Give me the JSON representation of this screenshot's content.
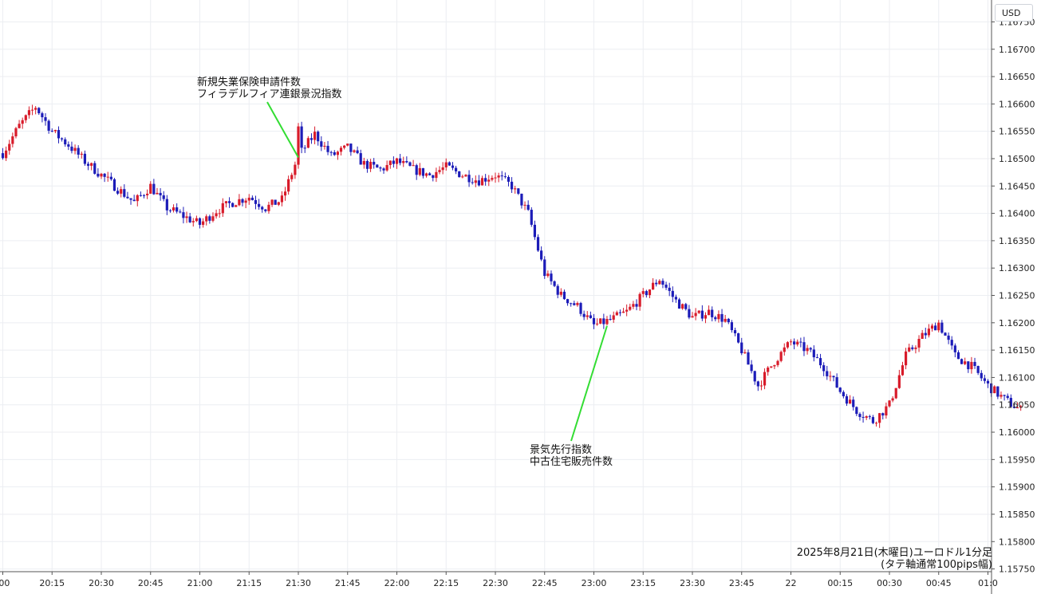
{
  "chart_data": {
    "type": "candlestick",
    "currency": "USD",
    "ylim": [
      1.15745,
      1.1679
    ],
    "y_ticks": [
      1.1675,
      1.167,
      1.1665,
      1.166,
      1.1655,
      1.165,
      1.1645,
      1.164,
      1.1635,
      1.163,
      1.1625,
      1.162,
      1.1615,
      1.161,
      1.1605,
      1.16,
      1.1595,
      1.159,
      1.1585,
      1.158,
      1.1575
    ],
    "y_tick_labels": [
      "1.16750",
      "1.16700",
      "1.16650",
      "1.16600",
      "1.16550",
      "1.16500",
      "1.16450",
      "1.16400",
      "1.16350",
      "1.16300",
      "1.16250",
      "1.16200",
      "1.16150",
      "1.16100",
      "1.16050",
      "1.16000",
      "1.15950",
      "1.15900",
      "1.15850",
      "1.15800",
      "1.15750"
    ],
    "x_tick_labels": [
      ":00",
      "20:15",
      "20:30",
      "20:45",
      "21:00",
      "21:15",
      "21:30",
      "21:45",
      "22:00",
      "22:15",
      "22:30",
      "22:45",
      "23:00",
      "23:15",
      "23:30",
      "23:45",
      "22",
      "00:15",
      "00:30",
      "00:45",
      "01:0"
    ],
    "price_path": [
      [
        0,
        1.1651
      ],
      [
        5,
        1.1656
      ],
      [
        10,
        1.16595
      ],
      [
        15,
        1.1655
      ],
      [
        20,
        1.16525
      ],
      [
        25,
        1.16495
      ],
      [
        30,
        1.1647
      ],
      [
        35,
        1.16445
      ],
      [
        40,
        1.1642
      ],
      [
        45,
        1.1645
      ],
      [
        50,
        1.1641
      ],
      [
        55,
        1.16395
      ],
      [
        60,
        1.1638
      ],
      [
        65,
        1.16405
      ],
      [
        70,
        1.1642
      ],
      [
        75,
        1.1643
      ],
      [
        80,
        1.1641
      ],
      [
        85,
        1.16425
      ],
      [
        90,
        1.16505
      ],
      [
        95,
        1.16545
      ],
      [
        100,
        1.16505
      ],
      [
        105,
        1.1652
      ],
      [
        110,
        1.1649
      ],
      [
        115,
        1.1648
      ],
      [
        120,
        1.16495
      ],
      [
        125,
        1.1648
      ],
      [
        130,
        1.1647
      ],
      [
        135,
        1.16485
      ],
      [
        140,
        1.1647
      ],
      [
        145,
        1.1646
      ],
      [
        150,
        1.1647
      ],
      [
        155,
        1.1645
      ],
      [
        160,
        1.164
      ],
      [
        165,
        1.1629
      ],
      [
        170,
        1.1625
      ],
      [
        175,
        1.1623
      ],
      [
        180,
        1.16195
      ],
      [
        185,
        1.16205
      ],
      [
        190,
        1.1622
      ],
      [
        195,
        1.1625
      ],
      [
        200,
        1.1628
      ],
      [
        205,
        1.1624
      ],
      [
        210,
        1.1621
      ],
      [
        215,
        1.1622
      ],
      [
        220,
        1.16205
      ],
      [
        225,
        1.1615
      ],
      [
        230,
        1.16085
      ],
      [
        235,
        1.1613
      ],
      [
        240,
        1.16165
      ],
      [
        245,
        1.1615
      ],
      [
        250,
        1.1612
      ],
      [
        255,
        1.16075
      ],
      [
        260,
        1.1604
      ],
      [
        265,
        1.1602
      ],
      [
        270,
        1.1605
      ],
      [
        275,
        1.1614
      ],
      [
        280,
        1.16175
      ],
      [
        285,
        1.162
      ],
      [
        290,
        1.1614
      ],
      [
        295,
        1.1612
      ],
      [
        300,
        1.16085
      ],
      [
        305,
        1.1606
      ],
      [
        310,
        1.1604
      ]
    ],
    "annotations": [
      {
        "name": "annotation-2130",
        "lines": [
          "新規失業保険申請件数",
          "フィラデルフィア連銀景況指数"
        ],
        "at_time": "21:30"
      },
      {
        "name": "annotation-2300",
        "lines": [
          "景気先行指数",
          "中古住宅販売件数"
        ],
        "at_time": "23:00"
      }
    ],
    "caption": [
      "2025年8月21日(木曜日)ユーロドル1分足",
      "(タテ軸通常100pips幅)"
    ],
    "grid": true,
    "up_color": "#d81b2a",
    "down_color": "#1c1cb8",
    "annotation_line_color": "#33dd33"
  }
}
